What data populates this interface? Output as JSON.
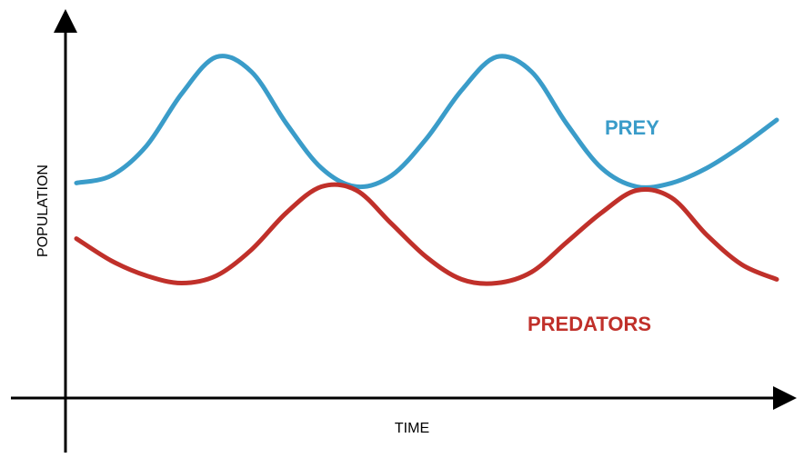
{
  "chart_data": {
    "type": "line",
    "xlabel": "TIME",
    "ylabel": "POPULATION",
    "axes_ticks": "none",
    "grid": false,
    "x": [
      0,
      0.5,
      1,
      1.5,
      2,
      2.5,
      3,
      3.5,
      4,
      4.5,
      5,
      5.5,
      6,
      6.5,
      7,
      7.5,
      8,
      8.5,
      9,
      9.5,
      10
    ],
    "series": [
      {
        "name": "PREY",
        "color": "#3a9cc9",
        "values": [
          0.58,
          0.6,
          0.68,
          0.82,
          0.92,
          0.88,
          0.74,
          0.62,
          0.57,
          0.6,
          0.7,
          0.83,
          0.92,
          0.88,
          0.74,
          0.62,
          0.57,
          0.58,
          0.62,
          0.68,
          0.75
        ]
      },
      {
        "name": "PREDATORS",
        "color": "#c0302a",
        "values": [
          0.43,
          0.37,
          0.33,
          0.31,
          0.33,
          0.4,
          0.5,
          0.57,
          0.56,
          0.47,
          0.38,
          0.32,
          0.31,
          0.34,
          0.42,
          0.5,
          0.56,
          0.54,
          0.44,
          0.36,
          0.32
        ]
      }
    ]
  }
}
